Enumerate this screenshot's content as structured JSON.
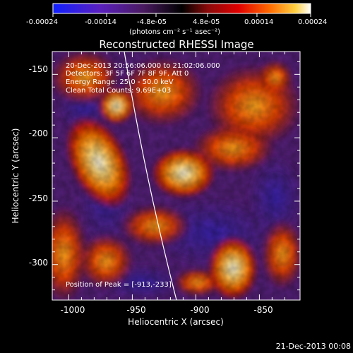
{
  "colors": {
    "background": "#000000",
    "scale": [
      "#1020ff",
      "#5a20c0",
      "#5a1f7a",
      "#000000",
      "#8a0a0a",
      "#e00000",
      "#ff6a00",
      "#ffc020",
      "#ffffff"
    ],
    "limb_line": "#ffffff"
  },
  "colorbar": {
    "ticks": [
      "-0.00024",
      "-0.00014",
      "-4.8e-05",
      "4.8e-05",
      "0.00014",
      "0.00024"
    ],
    "unit": "(photons cm⁻² s⁻¹ asec⁻²)"
  },
  "plot": {
    "title": "Reconstructed RHESSI Image",
    "xlabel": "Heliocentric X (arcsec)",
    "ylabel": "Heliocentric Y (arcsec)",
    "x_ticks": [
      "-1000",
      "-950",
      "-900",
      "-850"
    ],
    "y_ticks": [
      "-150",
      "-200",
      "-250",
      "-300"
    ],
    "xlim": [
      -1013,
      -818
    ],
    "ylim": [
      -328,
      -132
    ],
    "annotations": {
      "time": "20-Dec-2013 20:56:06.000 to 21:02:06.000",
      "detectors": "Detectors: 3F 5F 6F 7F 8F 9F, Att 0",
      "energy": "Energy Range: 25.0 - 50.0 keV",
      "clean": "Clean     Total Counts: 9.69E+03",
      "peak": "Position of Peak = [-913,-233]"
    }
  },
  "footer": {
    "timestamp": "21-Dec-2013 00:08"
  },
  "chart_data": {
    "type": "heatmap",
    "title": "Reconstructed RHESSI Image",
    "xlabel": "Heliocentric X (arcsec)",
    "ylabel": "Heliocentric Y (arcsec)",
    "xlim": [
      -1013,
      -818
    ],
    "ylim": [
      -328,
      -132
    ],
    "colorbar_range": [
      -0.00024,
      0.00024
    ],
    "peak": {
      "x": -913,
      "y": -233
    }
  }
}
